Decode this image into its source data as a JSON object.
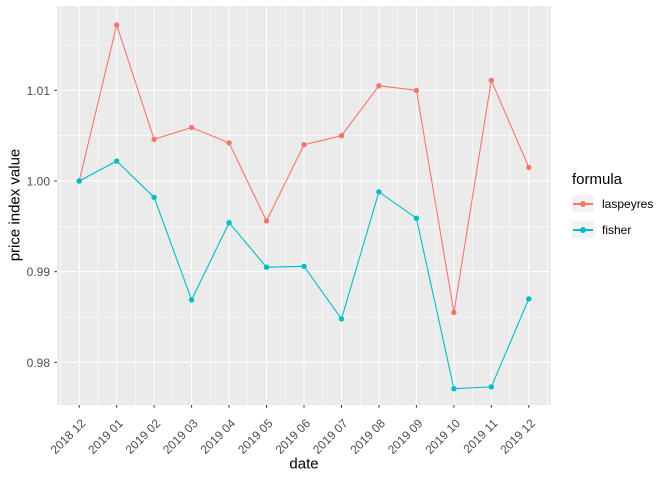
{
  "figure": {
    "background": "#FFFFFF",
    "panel_background": "#EBEBEB",
    "grid_color": "#FFFFFF",
    "tick_color": "#333333",
    "axis_text_color": "#4D4D4D",
    "title_text_color": "#000000",
    "legend_key_background": "#F2F2F2"
  },
  "chart_data": {
    "type": "line",
    "title": "",
    "xlabel": "date",
    "ylabel": "price index value",
    "legend_title": "formula",
    "legend_position": "right",
    "grid": true,
    "categories": [
      "2018 12",
      "2019 01",
      "2019 02",
      "2019 03",
      "2019 04",
      "2019 05",
      "2019 06",
      "2019 07",
      "2019 08",
      "2019 09",
      "2019 10",
      "2019 11",
      "2019 12"
    ],
    "series": [
      {
        "name": "laspeyres",
        "color": "#F8766D",
        "values": [
          1.0,
          1.0172,
          1.0046,
          1.0059,
          1.0042,
          0.9956,
          1.004,
          1.005,
          1.0105,
          1.01,
          0.9855,
          1.0111,
          1.0015
        ]
      },
      {
        "name": "fisher",
        "color": "#00BFC4",
        "values": [
          1.0,
          1.0022,
          0.9982,
          0.9869,
          0.9954,
          0.9905,
          0.9906,
          0.9848,
          0.9988,
          0.9959,
          0.9771,
          0.9773,
          0.987
        ]
      }
    ],
    "ylim": [
      0.9753,
      1.0193
    ],
    "yticks": [
      0.98,
      0.99,
      1.0,
      1.01
    ],
    "ytick_labels": [
      "0.98",
      "0.99",
      "1.00",
      "1.01"
    ],
    "yticks_minor": [
      0.985,
      0.995,
      1.005,
      1.015
    ]
  }
}
